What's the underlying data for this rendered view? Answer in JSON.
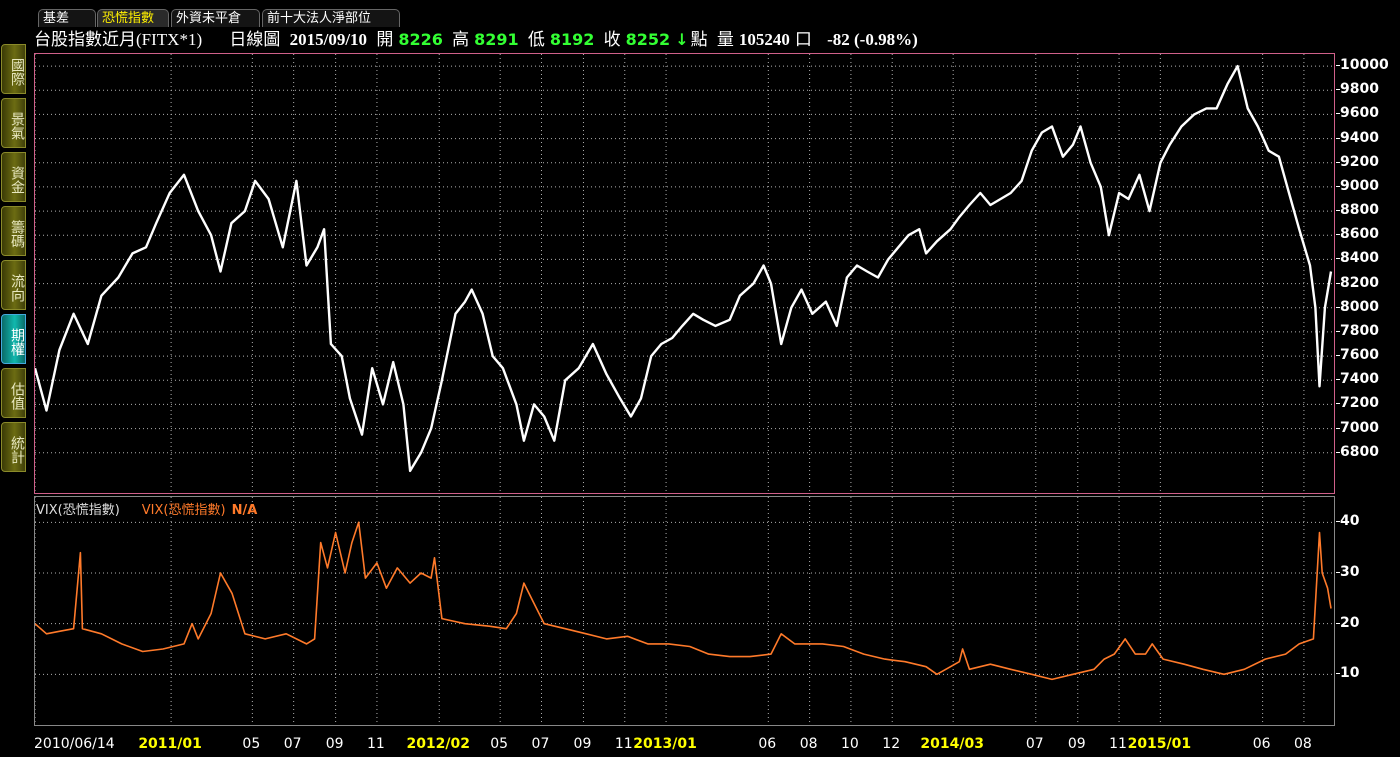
{
  "toolbar": {
    "menu_icon": "chevron-down-icon",
    "tabs": [
      {
        "label": "基差",
        "active": false
      },
      {
        "label": "恐慌指數",
        "active": true
      },
      {
        "label": "外資未平倉",
        "active": false
      },
      {
        "label": "前十大法人淨部位",
        "active": false
      }
    ]
  },
  "sidebar": {
    "items": [
      {
        "label": "國際",
        "active": false
      },
      {
        "label": "景氣",
        "active": false
      },
      {
        "label": "資金",
        "active": false
      },
      {
        "label": "籌碼",
        "active": false
      },
      {
        "label": "流向",
        "active": false
      },
      {
        "label": "期權",
        "active": true
      },
      {
        "label": "估值",
        "active": false
      },
      {
        "label": "統計",
        "active": false
      }
    ]
  },
  "info": {
    "title": "台股指數近月(FITX*1)",
    "chart_kind": "日線圖",
    "date": "2015/09/10",
    "open_label": "開",
    "open": "8226",
    "high_label": "高",
    "high": "8291",
    "low_label": "低",
    "low": "8192",
    "close_label": "收",
    "close": "8252",
    "down_arrow": "↓",
    "close_unit": "點",
    "volume_label": "量",
    "volume": "105240",
    "volume_unit": "口",
    "change": "-82 (-0.98%)"
  },
  "vix_legend": {
    "label1": "VIX(恐慌指數)",
    "label2": "VIX(恐慌指數)",
    "value": "N/A"
  },
  "colors": {
    "background": "#000000",
    "price_line": "#ffffff",
    "vix_line": "#ff7a2a",
    "grid": "#b0b0b0",
    "panel_border": "#d0608a",
    "value_green": "#33ff33",
    "year_label": "#ffff00"
  },
  "chart_data": [
    {
      "type": "line",
      "series": [
        {
          "values": [
            [
              "2010/06/14",
              7500
            ],
            [
              "2010/07/01",
              7150
            ],
            [
              "2010/07/20",
              7650
            ],
            [
              "2010/08/10",
              7950
            ],
            [
              "2010/08/31",
              7700
            ],
            [
              "2010/09/20",
              8100
            ],
            [
              "2010/10/15",
              8250
            ],
            [
              "2010/11/05",
              8450
            ],
            [
              "2010/11/25",
              8500
            ],
            [
              "2010/12/10",
              8700
            ],
            [
              "2010/12/30",
              8950
            ],
            [
              "2011/01/20",
              9100
            ],
            [
              "2011/02/10",
              8800
            ],
            [
              "2011/03/01",
              8600
            ],
            [
              "2011/03/15",
              8300
            ],
            [
              "2011/03/31",
              8700
            ],
            [
              "2011/04/20",
              8800
            ],
            [
              "2011/05/05",
              9050
            ],
            [
              "2011/05/25",
              8900
            ],
            [
              "2011/06/15",
              8500
            ],
            [
              "2011/07/05",
              9050
            ],
            [
              "2011/07/20",
              8350
            ],
            [
              "2011/08/05",
              8500
            ],
            [
              "2011/08/15",
              8650
            ],
            [
              "2011/08/25",
              7700
            ],
            [
              "2011/09/10",
              7600
            ],
            [
              "2011/09/22",
              7250
            ],
            [
              "2011/10/10",
              6950
            ],
            [
              "2011/10/25",
              7500
            ],
            [
              "2011/11/10",
              7200
            ],
            [
              "2011/11/25",
              7550
            ],
            [
              "2011/12/10",
              7200
            ],
            [
              "2011/12/20",
              6650
            ],
            [
              "2012/01/05",
              6800
            ],
            [
              "2012/01/20",
              7000
            ],
            [
              "2012/02/05",
              7400
            ],
            [
              "2012/02/25",
              7950
            ],
            [
              "2012/03/10",
              8050
            ],
            [
              "2012/03/20",
              8150
            ],
            [
              "2012/04/05",
              7950
            ],
            [
              "2012/04/20",
              7600
            ],
            [
              "2012/05/05",
              7500
            ],
            [
              "2012/05/25",
              7200
            ],
            [
              "2012/06/05",
              6900
            ],
            [
              "2012/06/20",
              7200
            ],
            [
              "2012/07/05",
              7100
            ],
            [
              "2012/07/20",
              6900
            ],
            [
              "2012/08/05",
              7400
            ],
            [
              "2012/08/25",
              7500
            ],
            [
              "2012/09/15",
              7700
            ],
            [
              "2012/10/05",
              7450
            ],
            [
              "2012/10/25",
              7250
            ],
            [
              "2012/11/10",
              7100
            ],
            [
              "2012/11/25",
              7250
            ],
            [
              "2012/12/10",
              7600
            ],
            [
              "2012/12/25",
              7700
            ],
            [
              "2013/01/10",
              7750
            ],
            [
              "2013/01/25",
              7850
            ],
            [
              "2013/02/10",
              7950
            ],
            [
              "2013/02/25",
              7900
            ],
            [
              "2013/03/15",
              7850
            ],
            [
              "2013/04/05",
              7900
            ],
            [
              "2013/04/20",
              8100
            ],
            [
              "2013/05/10",
              8200
            ],
            [
              "2013/05/25",
              8350
            ],
            [
              "2013/06/05",
              8200
            ],
            [
              "2013/06/20",
              7700
            ],
            [
              "2013/07/05",
              8000
            ],
            [
              "2013/07/20",
              8150
            ],
            [
              "2013/08/05",
              7950
            ],
            [
              "2013/08/25",
              8050
            ],
            [
              "2013/09/10",
              7850
            ],
            [
              "2013/09/25",
              8250
            ],
            [
              "2013/10/10",
              8350
            ],
            [
              "2013/10/25",
              8300
            ],
            [
              "2013/11/10",
              8250
            ],
            [
              "2013/11/25",
              8400
            ],
            [
              "2013/12/10",
              8500
            ],
            [
              "2013/12/25",
              8600
            ],
            [
              "2014/01/10",
              8650
            ],
            [
              "2014/01/20",
              8450
            ],
            [
              "2014/02/05",
              8550
            ],
            [
              "2014/02/25",
              8650
            ],
            [
              "2014/03/10",
              8750
            ],
            [
              "2014/03/25",
              8850
            ],
            [
              "2014/04/10",
              8950
            ],
            [
              "2014/04/25",
              8850
            ],
            [
              "2014/05/10",
              8900
            ],
            [
              "2014/05/25",
              8950
            ],
            [
              "2014/06/10",
              9050
            ],
            [
              "2014/06/25",
              9300
            ],
            [
              "2014/07/10",
              9450
            ],
            [
              "2014/07/25",
              9500
            ],
            [
              "2014/08/10",
              9250
            ],
            [
              "2014/08/25",
              9350
            ],
            [
              "2014/09/05",
              9500
            ],
            [
              "2014/09/20",
              9200
            ],
            [
              "2014/10/05",
              9000
            ],
            [
              "2014/10/17",
              8600
            ],
            [
              "2014/11/01",
              8950
            ],
            [
              "2014/11/15",
              8900
            ],
            [
              "2014/12/01",
              9100
            ],
            [
              "2014/12/16",
              8800
            ],
            [
              "2015/01/01",
              9200
            ],
            [
              "2015/01/15",
              9350
            ],
            [
              "2015/02/01",
              9500
            ],
            [
              "2015/02/20",
              9600
            ],
            [
              "2015/03/10",
              9650
            ],
            [
              "2015/03/25",
              9650
            ],
            [
              "2015/04/10",
              9850
            ],
            [
              "2015/04/25",
              10000
            ],
            [
              "2015/05/10",
              9650
            ],
            [
              "2015/05/25",
              9500
            ],
            [
              "2015/06/10",
              9300
            ],
            [
              "2015/06/25",
              9250
            ],
            [
              "2015/07/10",
              8950
            ],
            [
              "2015/07/25",
              8650
            ],
            [
              "2015/08/10",
              8350
            ],
            [
              "2015/08/18",
              8000
            ],
            [
              "2015/08/24",
              7350
            ],
            [
              "2015/09/01",
              8000
            ],
            [
              "2015/09/10",
              8300
            ]
          ]
        }
      ],
      "ylim": [
        6500,
        10100
      ],
      "y_ticks": [
        6800,
        7000,
        7200,
        7400,
        7600,
        7800,
        8000,
        8200,
        8400,
        8600,
        8800,
        9000,
        9200,
        9400,
        9600,
        9800,
        10000
      ],
      "x_ticks": [
        "2010/06/14",
        "2011/01",
        "05",
        "07",
        "09",
        "11",
        "2012/02",
        "05",
        "07",
        "09",
        "11",
        "2013/01",
        "06",
        "08",
        "10",
        "12",
        "2014/03",
        "07",
        "09",
        "11",
        "2015/01",
        "06",
        "08"
      ],
      "grid": true
    },
    {
      "type": "line",
      "series": [
        {
          "name": "VIX(恐慌指數)",
          "values": [
            [
              "2010/06/14",
              20
            ],
            [
              "2010/07/01",
              18
            ],
            [
              "2010/07/20",
              18.5
            ],
            [
              "2010/08/10",
              19
            ],
            [
              "2010/08/20",
              34
            ],
            [
              "2010/08/23",
              19
            ],
            [
              "2010/09/20",
              18
            ],
            [
              "2010/10/20",
              16
            ],
            [
              "2010/11/20",
              14.5
            ],
            [
              "2010/12/20",
              15
            ],
            [
              "2011/01/20",
              16
            ],
            [
              "2011/02/01",
              20
            ],
            [
              "2011/02/10",
              17
            ],
            [
              "2011/03/01",
              22
            ],
            [
              "2011/03/15",
              30
            ],
            [
              "2011/04/01",
              26
            ],
            [
              "2011/04/20",
              18
            ],
            [
              "2011/05/20",
              17
            ],
            [
              "2011/06/20",
              18
            ],
            [
              "2011/07/20",
              16
            ],
            [
              "2011/08/01",
              17
            ],
            [
              "2011/08/10",
              36
            ],
            [
              "2011/08/20",
              31
            ],
            [
              "2011/09/01",
              38
            ],
            [
              "2011/09/15",
              30
            ],
            [
              "2011/09/25",
              36
            ],
            [
              "2011/10/05",
              40
            ],
            [
              "2011/10/15",
              29
            ],
            [
              "2011/11/01",
              32
            ],
            [
              "2011/11/15",
              27
            ],
            [
              "2011/12/01",
              31
            ],
            [
              "2011/12/20",
              28
            ],
            [
              "2012/01/05",
              30
            ],
            [
              "2012/01/20",
              29
            ],
            [
              "2012/01/25",
              33
            ],
            [
              "2012/02/05",
              21
            ],
            [
              "2012/03/10",
              20
            ],
            [
              "2012/04/15",
              19.5
            ],
            [
              "2012/05/10",
              19
            ],
            [
              "2012/05/25",
              22
            ],
            [
              "2012/06/05",
              28
            ],
            [
              "2012/06/20",
              24
            ],
            [
              "2012/07/05",
              20
            ],
            [
              "2012/08/05",
              19
            ],
            [
              "2012/09/05",
              18
            ],
            [
              "2012/10/05",
              17
            ],
            [
              "2012/11/05",
              17.5
            ],
            [
              "2012/12/05",
              16
            ],
            [
              "2013/01/05",
              16
            ],
            [
              "2013/02/05",
              15.5
            ],
            [
              "2013/03/05",
              14
            ],
            [
              "2013/04/05",
              13.5
            ],
            [
              "2013/05/05",
              13.5
            ],
            [
              "2013/06/05",
              14
            ],
            [
              "2013/06/20",
              18
            ],
            [
              "2013/07/10",
              16
            ],
            [
              "2013/08/20",
              16
            ],
            [
              "2013/09/20",
              15.5
            ],
            [
              "2013/10/20",
              14
            ],
            [
              "2013/11/20",
              13
            ],
            [
              "2013/12/20",
              12.5
            ],
            [
              "2014/01/20",
              11.5
            ],
            [
              "2014/02/05",
              10
            ],
            [
              "2014/02/25",
              11.5
            ],
            [
              "2014/03/10",
              12.5
            ],
            [
              "2014/03/15",
              15
            ],
            [
              "2014/03/25",
              11
            ],
            [
              "2014/04/25",
              12
            ],
            [
              "2014/05/25",
              11
            ],
            [
              "2014/06/25",
              10
            ],
            [
              "2014/07/25",
              9
            ],
            [
              "2014/08/25",
              10
            ],
            [
              "2014/09/25",
              11
            ],
            [
              "2014/10/10",
              13
            ],
            [
              "2014/10/25",
              14
            ],
            [
              "2014/11/10",
              17
            ],
            [
              "2014/11/25",
              14
            ],
            [
              "2014/12/10",
              14
            ],
            [
              "2014/12/20",
              16
            ],
            [
              "2015/01/05",
              13
            ],
            [
              "2015/02/05",
              12
            ],
            [
              "2015/03/05",
              11
            ],
            [
              "2015/04/05",
              10
            ],
            [
              "2015/05/05",
              11
            ],
            [
              "2015/06/05",
              13
            ],
            [
              "2015/07/05",
              14
            ],
            [
              "2015/07/25",
              16
            ],
            [
              "2015/08/15",
              17
            ],
            [
              "2015/08/24",
              38
            ],
            [
              "2015/08/28",
              30
            ],
            [
              "2015/09/05",
              27
            ],
            [
              "2015/09/10",
              23
            ]
          ]
        }
      ],
      "ylim": [
        0,
        45
      ],
      "y_ticks": [
        10,
        20,
        30,
        40
      ],
      "grid": true
    }
  ]
}
